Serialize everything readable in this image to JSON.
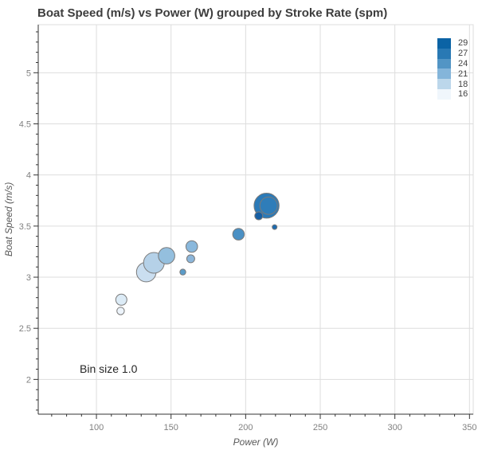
{
  "title": "Boat Speed (m/s) vs Power (W) grouped by Stroke Rate (spm)",
  "annotation": "Bin size 1.0",
  "legend": {
    "items": [
      {
        "label": "29",
        "color": "#0b63a5"
      },
      {
        "label": "27",
        "color": "#2979b4"
      },
      {
        "label": "24",
        "color": "#5295c5"
      },
      {
        "label": "21",
        "color": "#84b5da"
      },
      {
        "label": "18",
        "color": "#bcd7eb"
      },
      {
        "label": "16",
        "color": "#f0f6fc"
      }
    ]
  },
  "colors": {
    "grid": "#dddddd",
    "axis_line": "#333333",
    "tick": "#333333",
    "tick_label": "#808080",
    "point_stroke": "#7a7a7a",
    "background": "#ffffff"
  },
  "chart_data": {
    "type": "scatter",
    "title": "Boat Speed (m/s) vs Power (W) grouped by Stroke Rate (spm)",
    "xlabel": "Power (W)",
    "ylabel": "Boat Speed (m/s)",
    "legend_values": [
      29,
      27,
      24,
      21,
      18,
      16
    ],
    "legend_variable": "Stroke Rate (spm)",
    "x_ticks": [
      100,
      150,
      200,
      250,
      300,
      350
    ],
    "y_ticks": [
      2,
      2.5,
      3,
      3.5,
      4,
      4.5,
      5
    ],
    "x_minor_step": 10,
    "y_minor_step": 0.1,
    "xlim": [
      61,
      352.5
    ],
    "ylim": [
      1.66,
      5.47
    ],
    "grid": true,
    "legend_position": "top-right",
    "annotation": "Bin size 1.0",
    "points": [
      {
        "power": 116.2,
        "speed": 2.67,
        "r": 4.7,
        "color": "#edf4fb"
      },
      {
        "power": 116.7,
        "speed": 2.78,
        "r": 7.0,
        "color": "#dcebf6"
      },
      {
        "power": 133.4,
        "speed": 3.05,
        "r": 12.3,
        "color": "#cadef0"
      },
      {
        "power": 138.5,
        "speed": 3.14,
        "r": 13.0,
        "color": "#b5d1e8"
      },
      {
        "power": 147.0,
        "speed": 3.21,
        "r": 10.3,
        "color": "#94bfde"
      },
      {
        "power": 157.9,
        "speed": 3.05,
        "r": 3.7,
        "color": "#5b9cc9"
      },
      {
        "power": 163.2,
        "speed": 3.18,
        "r": 5.0,
        "color": "#8cb6da"
      },
      {
        "power": 163.9,
        "speed": 3.3,
        "r": 7.3,
        "color": "#8ab8dc"
      },
      {
        "power": 195.2,
        "speed": 3.42,
        "r": 7.3,
        "color": "#4a90c4"
      },
      {
        "power": 214.0,
        "speed": 3.7,
        "r": 15.7,
        "color": "#2b7ab8"
      },
      {
        "power": 215.4,
        "speed": 3.7,
        "r": 11.0,
        "color": "#2f7db9"
      },
      {
        "power": 208.8,
        "speed": 3.6,
        "r": 5.0,
        "color": "#165fa4"
      },
      {
        "power": 219.4,
        "speed": 3.49,
        "r": 3.0,
        "color": "#1c6bb0"
      }
    ]
  }
}
